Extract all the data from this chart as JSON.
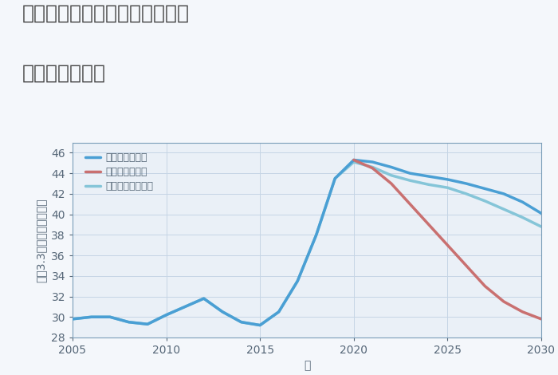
{
  "title_line1": "愛知県名古屋市中村区名駅南の",
  "title_line2": "土地の価格推移",
  "xlabel": "年",
  "ylabel": "坪（3.3㎡）単価（万円）",
  "background_color": "#f4f7fb",
  "plot_bg_color": "#eaf0f7",
  "grid_color": "#c5d5e5",
  "ylim": [
    28,
    47
  ],
  "xlim": [
    2005,
    2030
  ],
  "yticks": [
    28,
    30,
    32,
    34,
    36,
    38,
    40,
    42,
    44,
    46
  ],
  "xticks": [
    2005,
    2010,
    2015,
    2020,
    2025,
    2030
  ],
  "good_scenario": {
    "x": [
      2005,
      2006,
      2007,
      2008,
      2009,
      2010,
      2011,
      2012,
      2013,
      2014,
      2015,
      2016,
      2017,
      2018,
      2019,
      2020,
      2021,
      2022,
      2023,
      2024,
      2025,
      2026,
      2027,
      2028,
      2029,
      2030
    ],
    "y": [
      29.8,
      30.0,
      30.0,
      29.5,
      29.3,
      30.2,
      31.0,
      31.8,
      30.5,
      29.5,
      29.2,
      30.5,
      33.5,
      38.0,
      43.5,
      45.3,
      45.1,
      44.6,
      44.0,
      43.7,
      43.4,
      43.0,
      42.5,
      42.0,
      41.2,
      40.1
    ],
    "color": "#4a9fd4",
    "label": "グッドシナリオ",
    "linewidth": 2.5,
    "zorder": 3
  },
  "bad_scenario": {
    "x": [
      2020,
      2021,
      2022,
      2023,
      2024,
      2025,
      2026,
      2027,
      2028,
      2029,
      2030
    ],
    "y": [
      45.3,
      44.5,
      43.0,
      41.0,
      39.0,
      37.0,
      35.0,
      33.0,
      31.5,
      30.5,
      29.8
    ],
    "color": "#c97070",
    "label": "バッドシナリオ",
    "linewidth": 2.5,
    "zorder": 4
  },
  "normal_scenario": {
    "x": [
      2005,
      2006,
      2007,
      2008,
      2009,
      2010,
      2011,
      2012,
      2013,
      2014,
      2015,
      2016,
      2017,
      2018,
      2019,
      2020,
      2021,
      2022,
      2023,
      2024,
      2025,
      2026,
      2027,
      2028,
      2029,
      2030
    ],
    "y": [
      29.8,
      30.0,
      30.0,
      29.5,
      29.3,
      30.2,
      31.0,
      31.8,
      30.5,
      29.5,
      29.2,
      30.5,
      33.5,
      38.0,
      43.5,
      45.1,
      44.6,
      43.8,
      43.3,
      42.9,
      42.6,
      42.0,
      41.3,
      40.5,
      39.7,
      38.8
    ],
    "color": "#85c5d8",
    "label": "ノーマルシナリオ",
    "linewidth": 2.5,
    "zorder": 2
  },
  "title_color": "#444444",
  "axis_color": "#7a9db8",
  "tick_color": "#556677",
  "title_fontsize": 18,
  "label_fontsize": 10,
  "tick_fontsize": 10,
  "legend_fontsize": 9
}
